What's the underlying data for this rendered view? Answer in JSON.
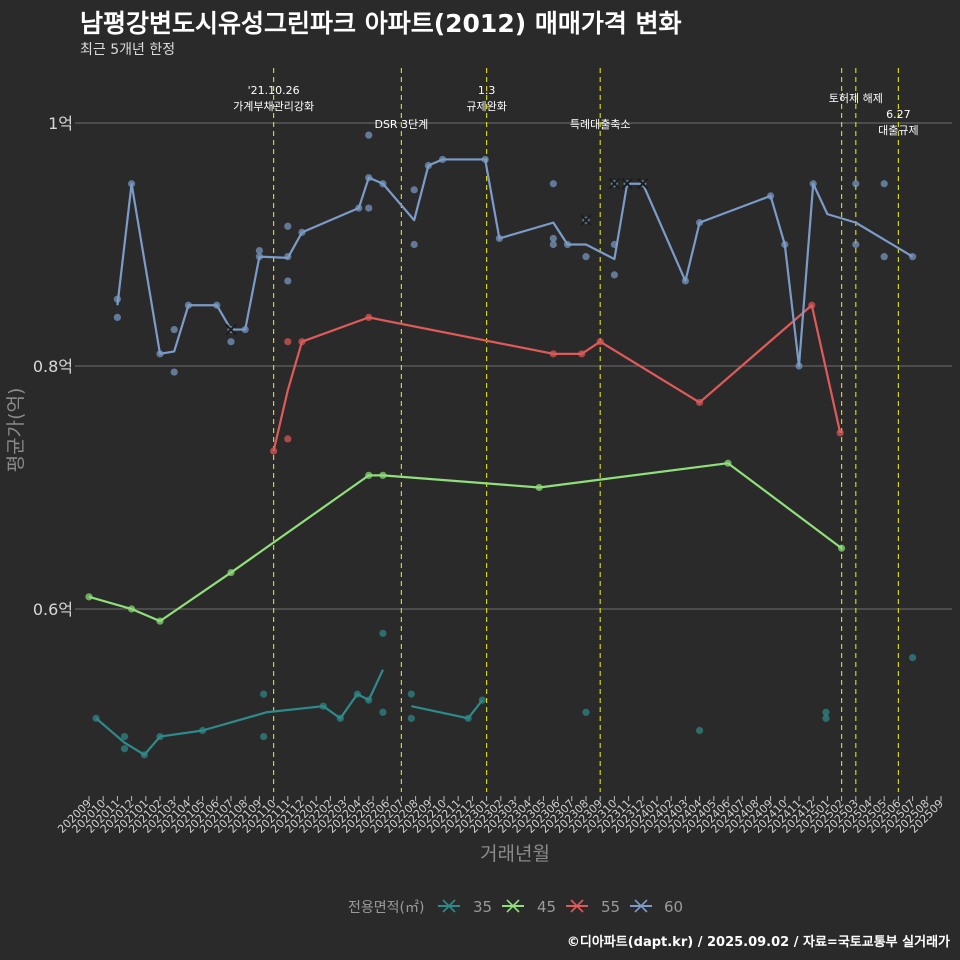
{
  "header": {
    "title": "남평강변도시유성그린파크 아파트(2012) 매매가격 변화",
    "subtitle": "최근 5개년 한정"
  },
  "footer": {
    "caption": "©디아파트(dapt.kr) / 2025.09.02 / 자료=국토교통부 실거래가"
  },
  "colors": {
    "background": "#2b2a2b",
    "gridline": "#6e6e6e",
    "event_line": "#d4d400",
    "series": {
      "35": "#2e8b8b",
      "45": "#8fe07a",
      "55": "#e05a5a",
      "60": "#7b9cc8"
    }
  },
  "chart_data": {
    "type": "line",
    "xlabel": "거래년월",
    "ylabel": "평균가(억)",
    "ylim": [
      0.45,
      1.05
    ],
    "yticks": [
      {
        "value": 0.6,
        "label": "0.6억"
      },
      {
        "value": 0.8,
        "label": "0.8억"
      },
      {
        "value": 1.0,
        "label": "1억"
      }
    ],
    "x_categories": [
      "202009",
      "202010",
      "202011",
      "202012",
      "202101",
      "202102",
      "202103",
      "202104",
      "202105",
      "202106",
      "202107",
      "202108",
      "202109",
      "202110",
      "202111",
      "202112",
      "202201",
      "202202",
      "202203",
      "202204",
      "202205",
      "202206",
      "202207",
      "202208",
      "202209",
      "202210",
      "202211",
      "202212",
      "202301",
      "202302",
      "202303",
      "202304",
      "202305",
      "202306",
      "202307",
      "202308",
      "202309",
      "202310",
      "202311",
      "202312",
      "202401",
      "202402",
      "202403",
      "202404",
      "202405",
      "202406",
      "202407",
      "202408",
      "202409",
      "202410",
      "202411",
      "202412",
      "202501",
      "202502",
      "202503",
      "202504",
      "202505",
      "202506",
      "202507",
      "202508",
      "202509"
    ],
    "grid": true,
    "legend": {
      "title": "전용면적(㎡)",
      "position": "bottom",
      "items": [
        "35",
        "45",
        "55",
        "60"
      ]
    },
    "events": [
      {
        "month": "202110",
        "label": "'21.10.26\n가계부채관리강화",
        "row": 1
      },
      {
        "month": "202207",
        "label": "DSR 3단계",
        "row": 2
      },
      {
        "month": "202301",
        "label": "1.3\n규제완화",
        "row": 1
      },
      {
        "month": "202309",
        "label": "특례대출축소",
        "row": 2
      },
      {
        "month": "202502",
        "label": "",
        "row": 0
      },
      {
        "month": "202503",
        "label": "토허제 해제",
        "row": 1
      },
      {
        "month": "202506",
        "label": "6.27\n대출규제",
        "row": 3
      }
    ],
    "series": [
      {
        "name": "35",
        "line": [
          [
            0.5,
            0.51
          ],
          [
            2.5,
            0.49
          ],
          [
            3.9,
            0.48
          ],
          [
            5,
            0.495
          ],
          [
            8,
            0.5
          ],
          [
            12.5,
            0.515
          ],
          [
            16.5,
            0.52
          ],
          [
            17.7,
            0.51
          ],
          [
            18.9,
            0.53
          ],
          [
            19.7,
            0.525
          ],
          [
            20.7,
            0.55
          ],
          null,
          [
            22.7,
            0.52
          ],
          [
            26.7,
            0.51
          ],
          [
            27.7,
            0.525
          ]
        ],
        "points": [
          [
            0.5,
            0.51
          ],
          [
            2.5,
            0.495
          ],
          [
            2.5,
            0.485
          ],
          [
            3.9,
            0.48
          ],
          [
            5,
            0.495
          ],
          [
            8,
            0.5
          ],
          [
            12.3,
            0.53
          ],
          [
            12.3,
            0.495
          ],
          [
            16.5,
            0.52
          ],
          [
            17.7,
            0.51
          ],
          [
            18.9,
            0.53
          ],
          [
            19.7,
            0.525
          ],
          [
            20.7,
            0.58
          ],
          [
            20.7,
            0.515
          ],
          [
            22.7,
            0.53
          ],
          [
            22.7,
            0.51
          ],
          [
            26.7,
            0.51
          ],
          [
            27.7,
            0.525
          ],
          [
            35,
            0.515
          ],
          [
            43,
            0.5
          ],
          [
            51.9,
            0.51
          ],
          [
            51.9,
            0.515
          ],
          [
            58,
            0.56
          ]
        ]
      },
      {
        "name": "45",
        "line": [
          [
            0,
            0.61
          ],
          [
            3,
            0.6
          ],
          [
            5,
            0.59
          ],
          [
            10,
            0.63
          ],
          [
            19.7,
            0.71
          ],
          [
            20.7,
            0.71
          ],
          [
            31.7,
            0.7
          ],
          [
            45,
            0.72
          ],
          [
            53,
            0.65
          ]
        ],
        "points": [
          [
            0,
            0.61
          ],
          [
            3,
            0.6
          ],
          [
            5,
            0.59
          ],
          [
            10,
            0.63
          ],
          [
            19.7,
            0.71
          ],
          [
            20.7,
            0.71
          ],
          [
            31.7,
            0.7
          ],
          [
            45,
            0.72
          ],
          [
            53,
            0.65
          ]
        ]
      },
      {
        "name": "55",
        "line": [
          [
            13,
            0.73
          ],
          [
            14,
            0.78
          ],
          [
            15,
            0.82
          ],
          [
            19.7,
            0.84
          ],
          [
            32.7,
            0.81
          ],
          [
            34.7,
            0.81
          ],
          [
            36,
            0.82
          ],
          [
            43,
            0.77
          ],
          [
            50.9,
            0.85
          ],
          [
            52.9,
            0.745
          ]
        ],
        "points": [
          [
            13,
            0.73
          ],
          [
            14,
            0.82
          ],
          [
            14,
            0.74
          ],
          [
            15,
            0.82
          ],
          [
            19.7,
            0.84
          ],
          [
            32.7,
            0.81
          ],
          [
            34.7,
            0.81
          ],
          [
            36,
            0.82
          ],
          [
            43,
            0.77
          ],
          [
            50.9,
            0.85
          ],
          [
            52.9,
            0.745
          ]
        ]
      },
      {
        "name": "60",
        "line": [
          [
            2,
            0.85
          ],
          [
            3,
            0.95
          ],
          [
            5,
            0.81
          ],
          [
            6,
            0.812
          ],
          [
            7,
            0.85
          ],
          [
            9,
            0.85
          ],
          [
            10,
            0.83
          ],
          [
            11,
            0.83
          ],
          [
            12,
            0.89
          ],
          [
            14,
            0.889
          ],
          [
            15,
            0.91
          ],
          [
            19,
            0.93
          ],
          [
            19.7,
            0.955
          ],
          [
            20.7,
            0.95
          ],
          [
            22.9,
            0.92
          ],
          [
            23.9,
            0.965
          ],
          [
            24.9,
            0.97
          ],
          [
            27.9,
            0.97
          ],
          [
            28.9,
            0.905
          ],
          [
            32.7,
            0.918
          ],
          [
            33.7,
            0.9
          ],
          [
            35,
            0.9
          ],
          [
            37,
            0.888
          ],
          [
            37.9,
            0.95
          ],
          [
            39,
            0.95
          ],
          [
            42,
            0.87
          ],
          [
            43,
            0.918
          ],
          [
            48,
            0.94
          ],
          [
            49,
            0.9
          ],
          [
            50,
            0.8
          ],
          [
            51,
            0.95
          ],
          [
            52,
            0.925
          ],
          [
            54,
            0.918
          ],
          [
            58,
            0.89
          ]
        ],
        "points": [
          [
            2,
            0.855
          ],
          [
            2,
            0.84
          ],
          [
            3,
            0.95
          ],
          [
            5,
            0.81
          ],
          [
            6,
            0.795
          ],
          [
            6,
            0.83
          ],
          [
            7,
            0.85
          ],
          [
            9,
            0.85
          ],
          [
            10,
            0.82
          ],
          [
            10,
            0.83
          ],
          [
            11,
            0.83
          ],
          [
            12,
            0.895
          ],
          [
            12,
            0.89
          ],
          [
            14,
            0.915
          ],
          [
            14,
            0.87
          ],
          [
            14,
            0.89
          ],
          [
            15,
            0.91
          ],
          [
            19,
            0.93
          ],
          [
            19.7,
            0.99
          ],
          [
            19.7,
            0.955
          ],
          [
            19.7,
            0.93
          ],
          [
            20.7,
            0.95
          ],
          [
            22.9,
            0.945
          ],
          [
            22.9,
            0.9
          ],
          [
            23.9,
            0.965
          ],
          [
            24.9,
            0.97
          ],
          [
            27.9,
            0.97
          ],
          [
            28.9,
            0.905
          ],
          [
            32.7,
            0.95
          ],
          [
            32.7,
            0.905
          ],
          [
            32.7,
            0.9
          ],
          [
            33.7,
            0.9
          ],
          [
            35,
            0.92
          ],
          [
            35,
            0.89
          ],
          [
            37,
            0.9
          ],
          [
            37,
            0.875
          ],
          [
            37,
            0.95
          ],
          [
            37.9,
            0.95
          ],
          [
            39,
            0.95
          ],
          [
            42,
            0.87
          ],
          [
            43,
            0.918
          ],
          [
            48,
            0.94
          ],
          [
            49,
            0.9
          ],
          [
            50,
            0.8
          ],
          [
            51,
            0.95
          ],
          [
            54,
            0.95
          ],
          [
            54,
            0.9
          ],
          [
            56,
            0.95
          ],
          [
            56,
            0.89
          ],
          [
            58,
            0.89
          ]
        ],
        "crosses": [
          [
            35,
            0.92
          ],
          [
            37,
            0.95
          ],
          [
            37.9,
            0.95
          ],
          [
            39,
            0.95
          ],
          [
            10,
            0.83
          ]
        ]
      }
    ]
  }
}
